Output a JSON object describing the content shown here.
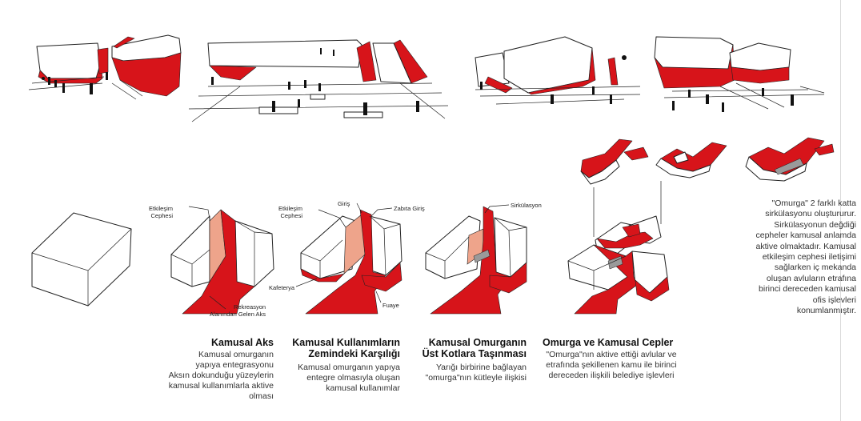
{
  "colors": {
    "accent": "#d7141a",
    "peach": "#eea48b",
    "line": "#222222"
  },
  "labels": {
    "etkilesim_cephesi_1": "Etkileşim\nCephesi",
    "rekreasyon": "Rekreasyon\nAlanından Gelen Aks",
    "etkilesim_cephesi_2": "Etkileşim\nCephesi",
    "giris": "Giriş",
    "zabita_giris": "Zabıta Giriş",
    "kafeterya": "Kafeterya",
    "fuaye": "Fuaye",
    "sirkulasyon": "Sirkülasyon"
  },
  "captions": [
    {
      "title": "Kamusal Aks",
      "body": "Kamusal omurganın\nyapıya entegrasyonu\nAksın dokunduğu yüzeylerin\nkamusal kullanımlarla aktive\nolması"
    },
    {
      "title": "Kamusal Kullanımların\nZemindeki Karşılığı",
      "body": "Kamusal omurganın yapıya\nentegre olmasıyla oluşan\nkamusal kullanımlar"
    },
    {
      "title": "Kamusal Omurganın\nÜst Kotlara Taşınması",
      "body": "Yarığı birbirine bağlayan\n\"omurga\"nın kütleyle ilişkisi"
    },
    {
      "title": "Omurga ve Kamusal Cepler",
      "body": "\"Omurga\"nın aktive ettiği avlular ve\netrafında şekillenen  kamu ile birinci\ndereceden ilişkili belediye işlevleri"
    }
  ],
  "side_note": "\"Omurga\" 2 farklı katta\nsirkülasyonu oluştururur.\nSirkülasyonun değdiği\ncepheler kamusal anlamda\naktive olmaktadır. Kamusal\netkileşim cephesi iletişimi\nsağlarken iç mekanda\noluşan avluların etrafına\nbirinci dereceden kamusal\nofis işlevleri\nkonumlanmıştır."
}
